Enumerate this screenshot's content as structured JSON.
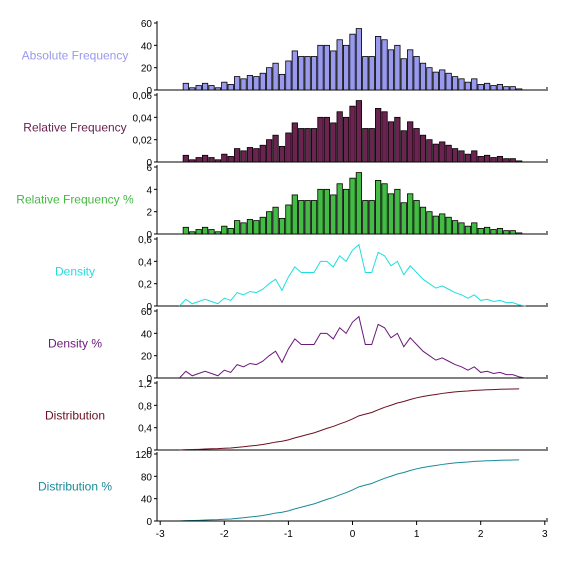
{
  "chart_data": {
    "type": "bar",
    "x": {
      "range": [
        -3.05,
        3.05
      ],
      "ticks": [
        -3,
        -2,
        -1,
        0,
        1,
        2,
        3
      ],
      "tick_labels": [
        "-3",
        "-2",
        "-1",
        "0",
        "1",
        "2",
        "3"
      ],
      "bin_centers": [
        -2.6,
        -2.5,
        -2.4,
        -2.3,
        -2.2,
        -2.1,
        -2.0,
        -1.9,
        -1.8,
        -1.7,
        -1.6,
        -1.5,
        -1.4,
        -1.3,
        -1.2,
        -1.1,
        -1.0,
        -0.9,
        -0.8,
        -0.7,
        -0.6,
        -0.5,
        -0.4,
        -0.3,
        -0.2,
        -0.1,
        0.0,
        0.1,
        0.2,
        0.3,
        0.4,
        0.5,
        0.6,
        0.7,
        0.8,
        0.9,
        1.0,
        1.1,
        1.2,
        1.3,
        1.4,
        1.5,
        1.6,
        1.7,
        1.8,
        1.9,
        2.0,
        2.1,
        2.2,
        2.3,
        2.4,
        2.5,
        2.6
      ]
    },
    "panels": [
      {
        "label": "Absolute Frequency",
        "color": "#9999ee",
        "kind": "bar",
        "ylim": [
          0,
          60
        ],
        "yticks": [
          0,
          20,
          40,
          60
        ],
        "ytick_labels": [
          "0",
          "20",
          "40",
          "60"
        ],
        "values": [
          6,
          2,
          4,
          6,
          4,
          2,
          7,
          5,
          12,
          10,
          13,
          12,
          15,
          20,
          24,
          14,
          26,
          35,
          30,
          30,
          30,
          40,
          40,
          35,
          45,
          40,
          50,
          55,
          30,
          30,
          48,
          45,
          36,
          40,
          28,
          36,
          30,
          24,
          20,
          16,
          18,
          15,
          12,
          10,
          7,
          10,
          5,
          6,
          4,
          5,
          3,
          3,
          1
        ]
      },
      {
        "label": "Relative Frequency",
        "color": "#6b2350",
        "kind": "bar",
        "ylim": [
          0,
          0.06
        ],
        "yticks": [
          0,
          0.02,
          0.04,
          0.06
        ],
        "ytick_labels": [
          "0",
          "0,02",
          "0,04",
          "0,06"
        ],
        "values": [
          0.006,
          0.002,
          0.004,
          0.006,
          0.004,
          0.002,
          0.007,
          0.005,
          0.012,
          0.01,
          0.013,
          0.012,
          0.015,
          0.02,
          0.024,
          0.014,
          0.026,
          0.035,
          0.03,
          0.03,
          0.03,
          0.04,
          0.04,
          0.035,
          0.045,
          0.04,
          0.05,
          0.055,
          0.03,
          0.03,
          0.048,
          0.045,
          0.036,
          0.04,
          0.028,
          0.036,
          0.03,
          0.024,
          0.02,
          0.016,
          0.018,
          0.015,
          0.012,
          0.01,
          0.007,
          0.01,
          0.005,
          0.006,
          0.004,
          0.005,
          0.003,
          0.003,
          0.001
        ]
      },
      {
        "label": "Relative Frequency %",
        "color": "#44bb44",
        "kind": "bar",
        "ylim": [
          0,
          6
        ],
        "yticks": [
          0,
          2,
          4,
          6
        ],
        "ytick_labels": [
          "0",
          "2",
          "4",
          "6"
        ],
        "values": [
          0.6,
          0.2,
          0.4,
          0.6,
          0.4,
          0.2,
          0.7,
          0.5,
          1.2,
          1.0,
          1.3,
          1.2,
          1.5,
          2.0,
          2.4,
          1.4,
          2.6,
          3.5,
          3.0,
          3.0,
          3.0,
          4.0,
          4.0,
          3.5,
          4.5,
          4.0,
          5.0,
          5.5,
          3.0,
          3.0,
          4.8,
          4.5,
          3.6,
          4.0,
          2.8,
          3.6,
          3.0,
          2.4,
          2.0,
          1.6,
          1.8,
          1.5,
          1.2,
          1.0,
          0.7,
          1.0,
          0.5,
          0.6,
          0.4,
          0.5,
          0.3,
          0.3,
          0.1
        ]
      },
      {
        "label": "Density",
        "color": "#22dddd",
        "kind": "line",
        "ylim": [
          0,
          0.6
        ],
        "yticks": [
          0,
          0.2,
          0.4,
          0.6
        ],
        "ytick_labels": [
          "0",
          "0,2",
          "0,4",
          "0,6"
        ],
        "values": [
          0.06,
          0.02,
          0.04,
          0.06,
          0.04,
          0.02,
          0.07,
          0.05,
          0.12,
          0.1,
          0.13,
          0.12,
          0.15,
          0.2,
          0.24,
          0.14,
          0.26,
          0.35,
          0.3,
          0.3,
          0.3,
          0.4,
          0.4,
          0.35,
          0.45,
          0.4,
          0.5,
          0.55,
          0.3,
          0.3,
          0.48,
          0.45,
          0.36,
          0.4,
          0.28,
          0.36,
          0.3,
          0.24,
          0.2,
          0.16,
          0.18,
          0.15,
          0.12,
          0.1,
          0.07,
          0.1,
          0.05,
          0.06,
          0.04,
          0.05,
          0.03,
          0.03,
          0.01
        ]
      },
      {
        "label": "Density %",
        "color": "#6a1a7a",
        "kind": "line",
        "ylim": [
          0,
          60
        ],
        "yticks": [
          0,
          20,
          40,
          60
        ],
        "ytick_labels": [
          "0",
          "20",
          "40",
          "60"
        ],
        "values": [
          6,
          2,
          4,
          6,
          4,
          2,
          7,
          5,
          12,
          10,
          13,
          12,
          15,
          20,
          24,
          14,
          26,
          35,
          30,
          30,
          30,
          40,
          40,
          35,
          45,
          40,
          50,
          55,
          30,
          30,
          48,
          45,
          36,
          40,
          28,
          36,
          30,
          24,
          20,
          16,
          18,
          15,
          12,
          10,
          7,
          10,
          5,
          6,
          4,
          5,
          3,
          3,
          1
        ]
      },
      {
        "label": "Distribution",
        "color": "#6b1020",
        "kind": "line",
        "ylim": [
          0,
          1.2
        ],
        "yticks": [
          0,
          0.4,
          0.8,
          1.2
        ],
        "ytick_labels": [
          "0",
          "0,4",
          "0,8",
          "1,2"
        ],
        "values": [
          0.006,
          0.008,
          0.012,
          0.018,
          0.022,
          0.024,
          0.031,
          0.036,
          0.048,
          0.058,
          0.071,
          0.083,
          0.098,
          0.118,
          0.142,
          0.156,
          0.182,
          0.217,
          0.247,
          0.277,
          0.307,
          0.347,
          0.387,
          0.422,
          0.467,
          0.507,
          0.557,
          0.612,
          0.642,
          0.672,
          0.72,
          0.765,
          0.801,
          0.841,
          0.869,
          0.905,
          0.935,
          0.959,
          0.979,
          0.995,
          1.013,
          1.028,
          1.04,
          1.05,
          1.057,
          1.067,
          1.072,
          1.078,
          1.082,
          1.087,
          1.09,
          1.093,
          1.094
        ]
      },
      {
        "label": "Distribution %",
        "color": "#1a8a9a",
        "kind": "line",
        "ylim": [
          0,
          120
        ],
        "yticks": [
          0,
          40,
          80,
          120
        ],
        "ytick_labels": [
          "0",
          "40",
          "80",
          "120"
        ],
        "values": [
          0.6,
          0.8,
          1.2,
          1.8,
          2.2,
          2.4,
          3.1,
          3.6,
          4.8,
          5.8,
          7.1,
          8.3,
          9.8,
          11.8,
          14.2,
          15.6,
          18.2,
          21.7,
          24.7,
          27.7,
          30.7,
          34.7,
          38.7,
          42.2,
          46.7,
          50.7,
          55.7,
          61.2,
          64.2,
          67.2,
          72.0,
          76.5,
          80.1,
          84.1,
          86.9,
          90.5,
          93.5,
          95.9,
          97.9,
          99.5,
          101.3,
          102.8,
          104.0,
          105.0,
          105.7,
          106.7,
          107.2,
          107.8,
          108.2,
          108.7,
          109.0,
          109.3,
          109.4
        ]
      }
    ]
  }
}
